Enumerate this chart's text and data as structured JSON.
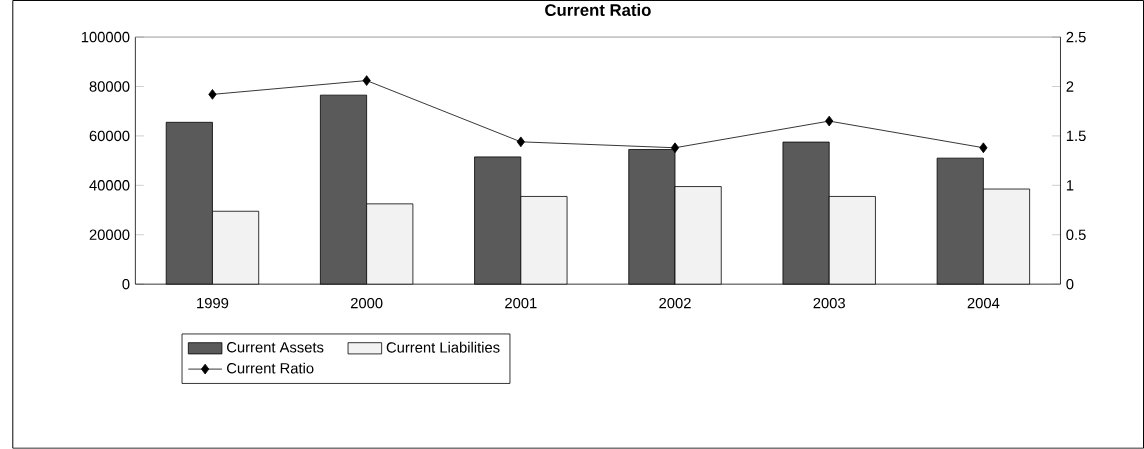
{
  "chart_data": {
    "type": "bar",
    "title": "Current Ratio",
    "categories": [
      "1999",
      "2000",
      "2001",
      "2002",
      "2003",
      "2004"
    ],
    "series": [
      {
        "name": "Current Assets",
        "color": "#5a5a5a",
        "values": [
          65500,
          76500,
          51500,
          54500,
          57500,
          51000
        ]
      },
      {
        "name": "Current Liabilities",
        "color": "#f2f2f2",
        "values": [
          29500,
          32500,
          35500,
          39500,
          35500,
          38500
        ]
      },
      {
        "name": "Current Ratio",
        "type": "line",
        "axis": "y2",
        "color": "#000000",
        "marker": "diamond",
        "values": [
          1.92,
          2.06,
          1.44,
          1.38,
          1.65,
          1.38
        ]
      }
    ],
    "ylim": [
      0,
      100000
    ],
    "yticks": [
      0,
      20000,
      40000,
      60000,
      80000,
      100000
    ],
    "y2lim": [
      0,
      2.5
    ],
    "y2ticks": [
      0,
      0.5,
      1,
      1.5,
      2,
      2.5
    ],
    "legend": "bottom"
  }
}
